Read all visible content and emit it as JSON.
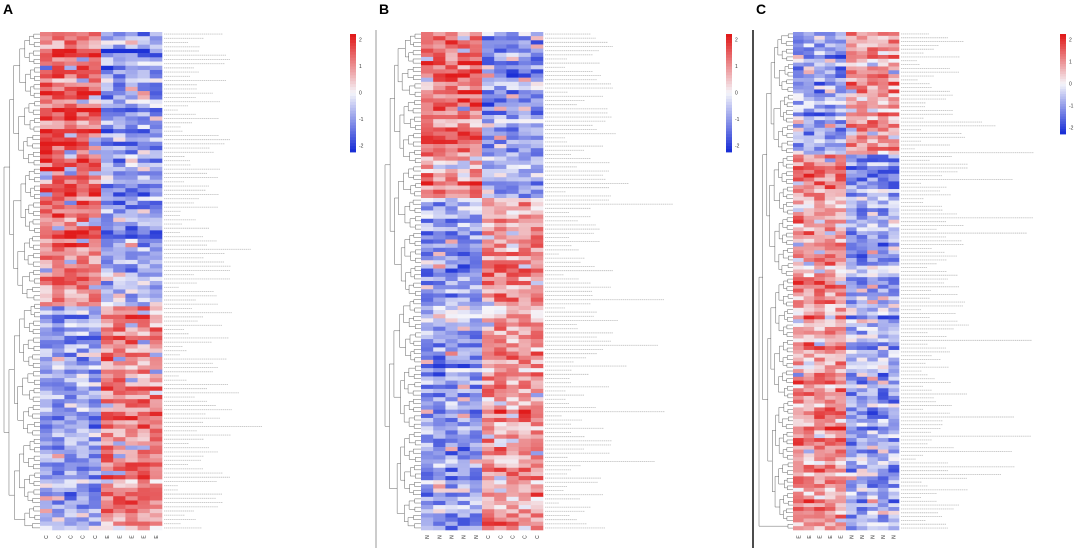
{
  "figure": {
    "background": "#ffffff",
    "color_low": "#1a2fd6",
    "color_mid": "#f5f5fa",
    "color_high": "#e11b1b",
    "divider_color": "#9a9a9a",
    "divider_strong_color": "#111111"
  },
  "chart_data": [
    {
      "type": "heatmap",
      "panel_label": "A",
      "rows": 118,
      "columns": 10,
      "value_range": [
        -2,
        2
      ],
      "legend_ticks": [
        "2",
        "1",
        "0",
        "-1",
        "-2"
      ],
      "column_groups": [
        5,
        5
      ],
      "blocks": [
        {
          "rows": 65,
          "group_values": [
            1.3,
            -0.9
          ]
        },
        {
          "rows": 53,
          "group_values": [
            -0.8,
            1.0
          ]
        }
      ],
      "column_labels": [
        "C",
        "C",
        "C",
        "C",
        "C",
        "E",
        "E",
        "E",
        "E",
        "E"
      ]
    },
    {
      "type": "heatmap",
      "panel_label": "B",
      "rows": 120,
      "columns": 10,
      "value_range": [
        -2,
        2
      ],
      "legend_ticks": [
        "2",
        "1",
        "0",
        "-1",
        "-2"
      ],
      "column_groups": [
        5,
        5
      ],
      "blocks": [
        {
          "rows": 40,
          "group_values": [
            1.1,
            -0.9
          ]
        },
        {
          "rows": 80,
          "group_values": [
            -0.9,
            0.9
          ]
        }
      ],
      "column_labels": [
        "N",
        "N",
        "N",
        "N",
        "N",
        "C",
        "C",
        "C",
        "C",
        "C"
      ]
    },
    {
      "type": "heatmap",
      "panel_label": "C",
      "rows": 130,
      "columns": 10,
      "value_range": [
        -2,
        2
      ],
      "legend_ticks": [
        "2",
        "1",
        "0",
        "-1",
        "-2"
      ],
      "column_groups": [
        5,
        5
      ],
      "blocks": [
        {
          "rows": 32,
          "group_values": [
            -0.9,
            0.9
          ]
        },
        {
          "rows": 98,
          "group_values": [
            0.9,
            -0.8
          ]
        }
      ],
      "column_labels": [
        "E",
        "E",
        "E",
        "E",
        "E",
        "N",
        "N",
        "N",
        "N",
        "N"
      ]
    }
  ]
}
